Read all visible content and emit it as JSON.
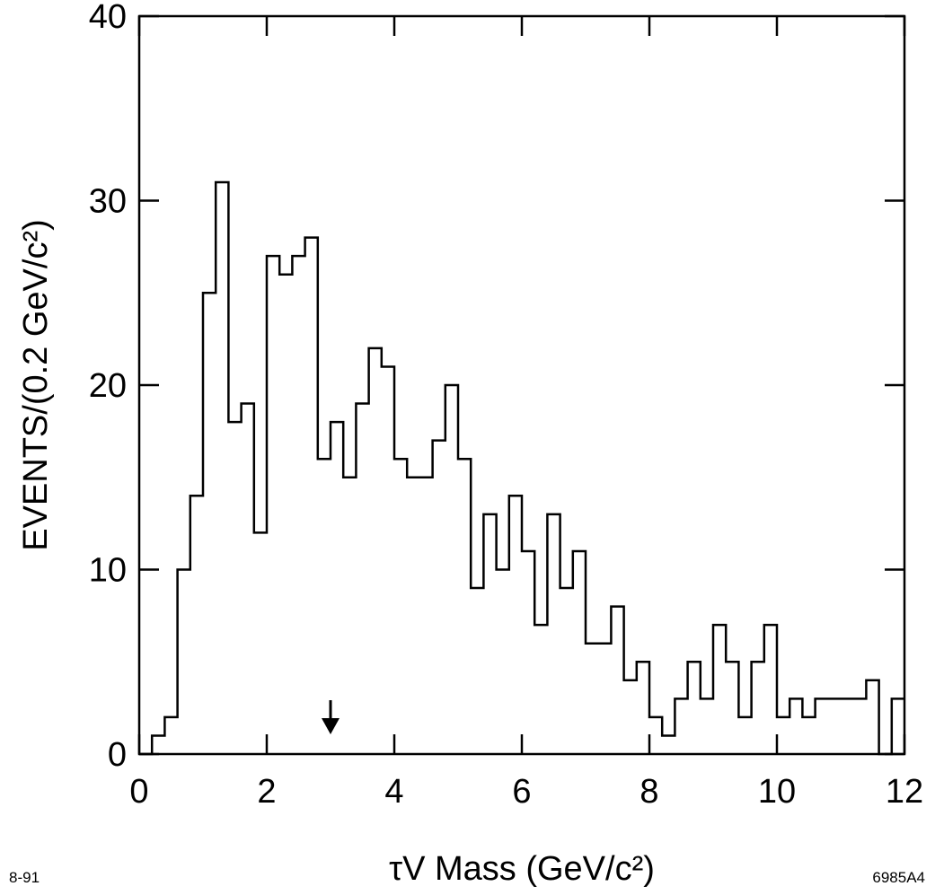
{
  "chart_data": {
    "type": "bar",
    "title": "",
    "xlabel": "τV Mass    (GeV/c²)",
    "ylabel": "EVENTS/(0.2 GeV/c²)",
    "xlim": [
      0,
      12
    ],
    "ylim": [
      0,
      40
    ],
    "x_ticks": [
      "0",
      "2",
      "4",
      "6",
      "8",
      "10",
      "12"
    ],
    "y_ticks": [
      "0",
      "10",
      "20",
      "30",
      "40"
    ],
    "bin_width": 0.2,
    "bin_start": 0,
    "values": [
      0,
      1,
      2,
      10,
      14,
      25,
      31,
      18,
      19,
      12,
      27,
      26,
      27,
      28,
      16,
      18,
      15,
      19,
      22,
      21,
      16,
      15,
      15,
      17,
      20,
      16,
      9,
      13,
      10,
      14,
      11,
      7,
      13,
      9,
      11,
      6,
      6,
      8,
      4,
      5,
      2,
      1,
      3,
      5,
      3,
      7,
      5,
      2,
      5,
      7,
      2,
      3,
      2,
      3,
      3,
      3,
      3,
      4,
      0,
      3
    ],
    "grid": false,
    "legend": "none",
    "annotation_arrow_x": 3.0
  },
  "notes": {
    "left": "8-91",
    "right": "6985A4"
  }
}
